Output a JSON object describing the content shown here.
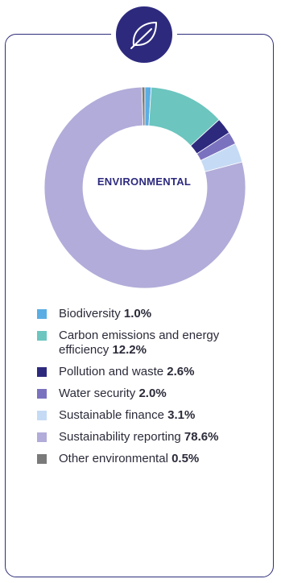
{
  "header": {
    "icon": "leaf-icon",
    "badge_color": "#2d2a7e"
  },
  "chart_data": {
    "type": "pie",
    "style": "donut",
    "center_label": "ENVIRONMENTAL",
    "categories": [
      "Biodiversity",
      "Carbon emissions and energy efficiency",
      "Pollution and waste",
      "Water security",
      "Sustainable finance",
      "Sustainability reporting",
      "Other environmental"
    ],
    "values": [
      1.0,
      12.2,
      2.6,
      2.0,
      3.1,
      78.6,
      0.5
    ],
    "value_labels": [
      "1.0%",
      "12.2%",
      "2.6%",
      "2.0%",
      "3.1%",
      "78.6%",
      "0.5%"
    ],
    "colors": [
      "#5aaee3",
      "#6cc5bf",
      "#2d2a7e",
      "#7b72bf",
      "#c5daf4",
      "#b1acd9",
      "#7a7a7a"
    ],
    "legend_position": "bottom"
  }
}
